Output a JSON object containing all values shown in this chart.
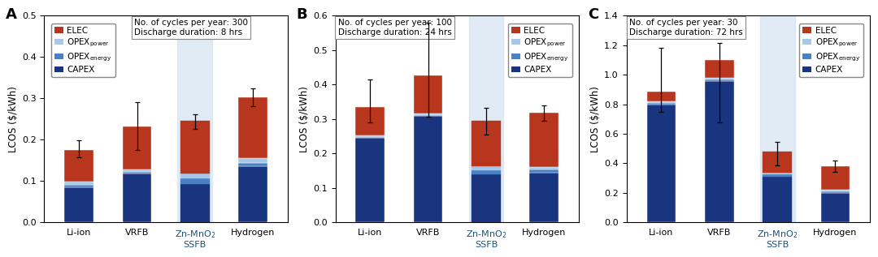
{
  "panels": [
    {
      "label": "A",
      "title_line1": "No. of cycles per year: 300",
      "title_line2": "Discharge duration: 8 hrs",
      "ylim": [
        0,
        0.5
      ],
      "yticks": [
        0.0,
        0.1,
        0.2,
        0.3,
        0.4,
        0.5
      ],
      "categories": [
        "Li-ion",
        "VRFB",
        "Zn-MnO$_2$\nSSFB",
        "Hydrogen"
      ],
      "capex": [
        0.085,
        0.118,
        0.093,
        0.135
      ],
      "opex_energy": [
        0.005,
        0.005,
        0.013,
        0.008
      ],
      "opex_power": [
        0.008,
        0.005,
        0.012,
        0.012
      ],
      "elec": [
        0.078,
        0.105,
        0.127,
        0.148
      ],
      "error_low": [
        0.018,
        0.058,
        0.018,
        0.022
      ],
      "error_high": [
        0.022,
        0.058,
        0.016,
        0.022
      ],
      "ssfb_index": 2,
      "legend_right": false,
      "infobox_right": true
    },
    {
      "label": "B",
      "title_line1": "No. of cycles per year: 100",
      "title_line2": "Discharge duration: 24 hrs",
      "ylim": [
        0,
        0.6
      ],
      "yticks": [
        0.0,
        0.1,
        0.2,
        0.3,
        0.4,
        0.5,
        0.6
      ],
      "categories": [
        "Li-ion",
        "VRFB",
        "Zn-MnO$_2$\nSSFB",
        "Hydrogen"
      ],
      "capex": [
        0.245,
        0.308,
        0.14,
        0.145
      ],
      "opex_energy": [
        0.004,
        0.004,
        0.012,
        0.008
      ],
      "opex_power": [
        0.004,
        0.004,
        0.01,
        0.008
      ],
      "elec": [
        0.083,
        0.11,
        0.133,
        0.157
      ],
      "error_low": [
        0.045,
        0.12,
        0.04,
        0.022
      ],
      "error_high": [
        0.08,
        0.155,
        0.038,
        0.022
      ],
      "ssfb_index": 2,
      "legend_right": true,
      "infobox_right": false
    },
    {
      "label": "C",
      "title_line1": "No. of cycles per year: 30",
      "title_line2": "Discharge duration: 72 hrs",
      "ylim": [
        0,
        1.4
      ],
      "yticks": [
        0.0,
        0.2,
        0.4,
        0.6,
        0.8,
        1.0,
        1.2,
        1.4
      ],
      "categories": [
        "Li-ion",
        "VRFB",
        "Zn-MnO$_2$\nSSFB",
        "Hydrogen"
      ],
      "capex": [
        0.8,
        0.96,
        0.31,
        0.2
      ],
      "opex_energy": [
        0.01,
        0.01,
        0.015,
        0.01
      ],
      "opex_power": [
        0.01,
        0.01,
        0.012,
        0.01
      ],
      "elec": [
        0.068,
        0.12,
        0.14,
        0.16
      ],
      "error_low": [
        0.14,
        0.42,
        0.09,
        0.038
      ],
      "error_high": [
        0.295,
        0.115,
        0.068,
        0.038
      ],
      "ssfb_index": 2,
      "legend_right": true,
      "infobox_right": false
    }
  ],
  "colors": {
    "elec": "#B8361E",
    "opex_power": "#A8C8E8",
    "opex_energy": "#4A80C4",
    "capex": "#1A3580"
  },
  "ssfb_bg": "#C8DCEF",
  "bar_width": 0.5,
  "ylabel": "LCOS ($/kWh)",
  "bg": "#FFFFFF"
}
